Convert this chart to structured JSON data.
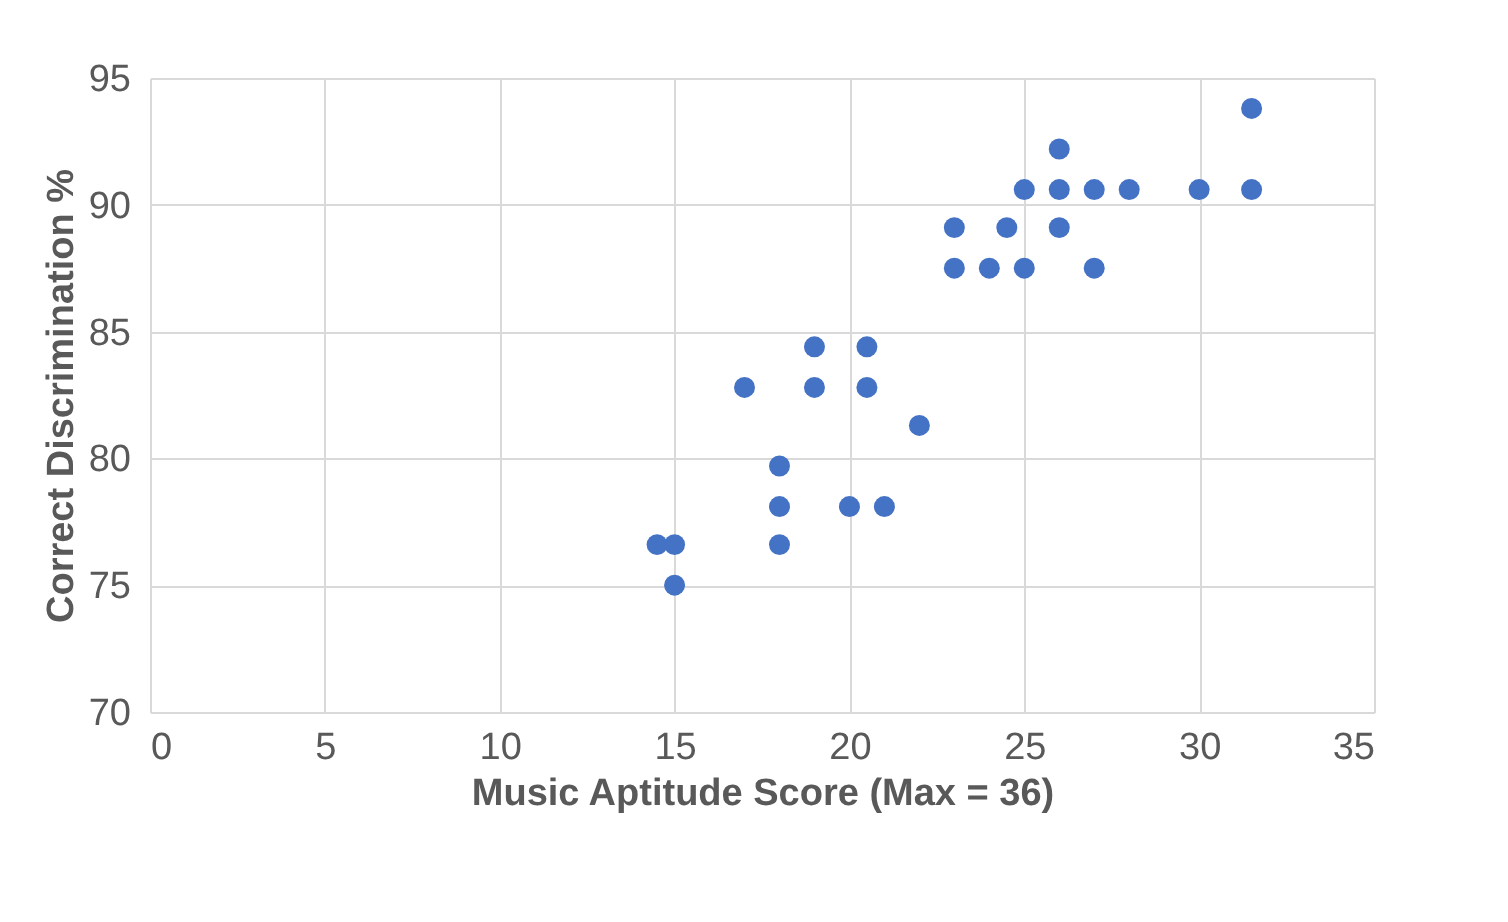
{
  "chart_data": {
    "type": "scatter",
    "xlabel": "Music Aptitude Score (Max = 36)",
    "ylabel": "Correct Discrimination %",
    "x": [
      14.5,
      15,
      15,
      17,
      18,
      18,
      18,
      19,
      19,
      20,
      20.5,
      20.5,
      21,
      22,
      23,
      23,
      24,
      24.5,
      25,
      25,
      26,
      26,
      26,
      27,
      27,
      28,
      30,
      31.5,
      31.5
    ],
    "series": [
      {
        "color": "#4472c4",
        "values": [
          76.6,
          76.6,
          75.0,
          82.8,
          79.7,
          78.1,
          76.6,
          84.4,
          82.8,
          78.1,
          84.4,
          82.8,
          78.1,
          81.3,
          89.1,
          87.5,
          87.5,
          89.1,
          90.6,
          87.5,
          92.2,
          90.6,
          89.1,
          90.6,
          87.5,
          90.6,
          90.6,
          93.8,
          90.6
        ]
      }
    ],
    "xlim": [
      0,
      35
    ],
    "xticks": [
      0,
      5,
      10,
      15,
      20,
      25,
      30,
      35
    ],
    "ylim": [
      70,
      95
    ],
    "yticks": [
      70,
      75,
      80,
      85,
      90,
      95
    ],
    "grid": true,
    "marker": "circle"
  }
}
